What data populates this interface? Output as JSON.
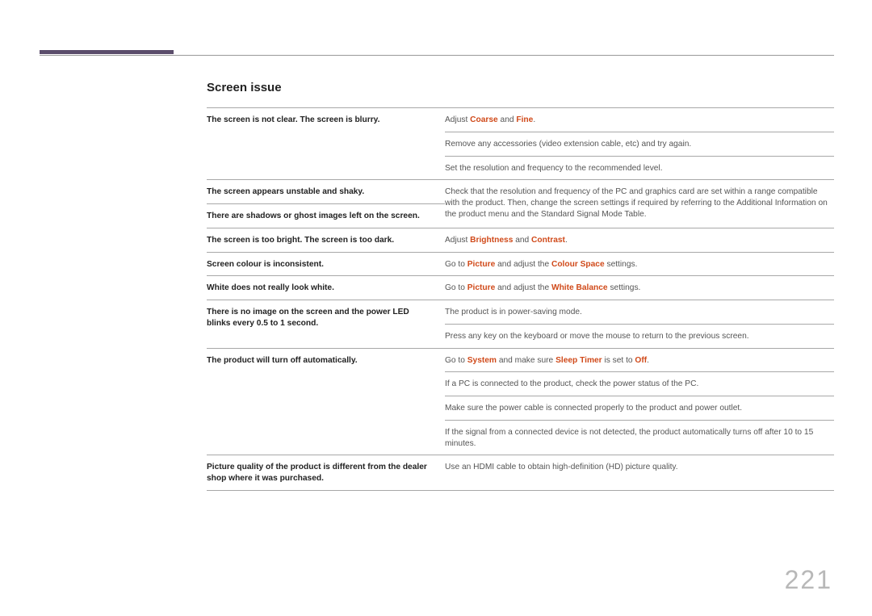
{
  "page_number": "221",
  "accent_bar_color": "#5b4d6b",
  "highlight_color": "#d04a1a",
  "section": {
    "title": "Screen issue",
    "rows": [
      {
        "left": "The screen is not clear. The screen is blurry.",
        "right": [
          {
            "t": "Adjust "
          },
          {
            "t": "Coarse",
            "hl": true
          },
          {
            "t": " and "
          },
          {
            "t": "Fine",
            "hl": true
          },
          {
            "t": "."
          }
        ],
        "left_rowspan": 3
      },
      {
        "right": [
          {
            "t": "Remove any accessories (video extension cable, etc) and try again."
          }
        ]
      },
      {
        "right": [
          {
            "t": "Set the resolution and frequency to the recommended level."
          }
        ]
      },
      {
        "left": "The screen appears unstable and shaky.",
        "right": [
          {
            "t": "Check that the resolution and frequency of the PC and graphics card are set within a range compatible with the product. Then, change the screen settings if required by referring to the Additional Information on the product menu and the Standard Signal Mode Table."
          }
        ],
        "right_rowspan": 2
      },
      {
        "left": "There are shadows or ghost images left on the screen."
      },
      {
        "left": "The screen is too bright. The screen is too dark.",
        "right": [
          {
            "t": "Adjust "
          },
          {
            "t": "Brightness",
            "hl": true
          },
          {
            "t": " and "
          },
          {
            "t": "Contrast",
            "hl": true
          },
          {
            "t": "."
          }
        ]
      },
      {
        "left": "Screen colour is inconsistent.",
        "right": [
          {
            "t": "Go to "
          },
          {
            "t": "Picture",
            "hl": true
          },
          {
            "t": " and adjust the "
          },
          {
            "t": "Colour Space",
            "hl": true
          },
          {
            "t": " settings."
          }
        ]
      },
      {
        "left": "White does not really look white.",
        "right": [
          {
            "t": "Go to "
          },
          {
            "t": "Picture",
            "hl": true
          },
          {
            "t": " and adjust the "
          },
          {
            "t": "White Balance",
            "hl": true
          },
          {
            "t": " settings."
          }
        ]
      },
      {
        "left": "There is no image on the screen and the power LED blinks every 0.5 to 1 second.",
        "right": [
          {
            "t": "The product is in power-saving mode."
          }
        ],
        "left_rowspan": 2
      },
      {
        "right": [
          {
            "t": "Press any key on the keyboard or move the mouse to return to the previous screen."
          }
        ]
      },
      {
        "left": "The product will turn off automatically.",
        "right": [
          {
            "t": "Go to "
          },
          {
            "t": "System",
            "hl": true
          },
          {
            "t": " and make sure "
          },
          {
            "t": "Sleep Timer",
            "hl": true
          },
          {
            "t": " is set to "
          },
          {
            "t": "Off",
            "hl": true
          },
          {
            "t": "."
          }
        ],
        "left_rowspan": 4
      },
      {
        "right": [
          {
            "t": "If a PC is connected to the product, check the power status of the PC."
          }
        ]
      },
      {
        "right": [
          {
            "t": "Make sure the power cable is connected properly to the product and power outlet."
          }
        ]
      },
      {
        "right": [
          {
            "t": "If the signal from a connected device is not detected, the product automatically turns off after 10 to 15 minutes."
          }
        ]
      },
      {
        "left": "Picture quality of the product is different from the dealer shop where it was purchased.",
        "right": [
          {
            "t": "Use an HDMI cable to obtain high-definition (HD) picture quality."
          }
        ]
      }
    ]
  }
}
